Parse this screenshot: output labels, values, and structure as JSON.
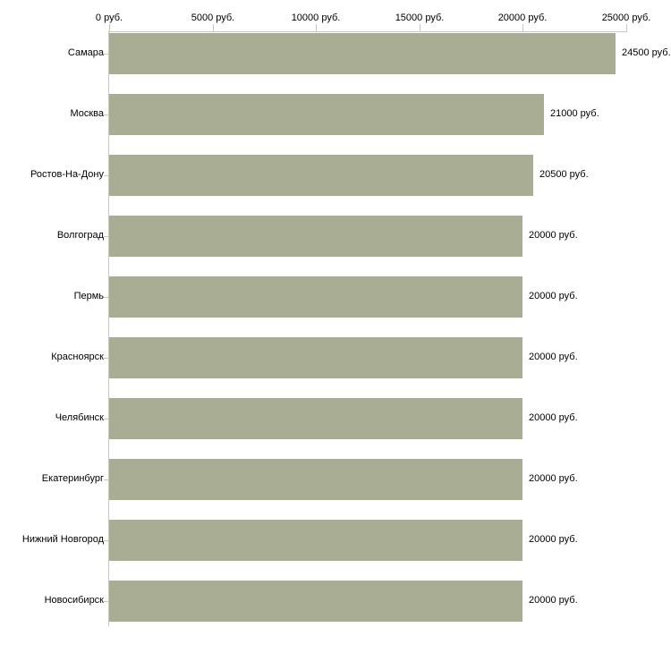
{
  "chart_data": {
    "type": "bar",
    "orientation": "horizontal",
    "title": "",
    "categories": [
      "Самара",
      "Москва",
      "Ростов-На-Дону",
      "Волгоград",
      "Пермь",
      "Красноярск",
      "Челябинск",
      "Екатеринбург",
      "Нижний Новгород",
      "Новосибирск"
    ],
    "values": [
      24500,
      21000,
      20500,
      20000,
      20000,
      20000,
      20000,
      20000,
      20000,
      20000
    ],
    "value_labels": [
      "24500 руб.",
      "21000 руб.",
      "20500 руб.",
      "20000 руб.",
      "20000 руб.",
      "20000 руб.",
      "20000 руб.",
      "20000 руб.",
      "20000 руб.",
      "20000 руб."
    ],
    "x_axis": {
      "position": "top",
      "range": [
        0,
        25000
      ],
      "ticks": [
        0,
        5000,
        10000,
        15000,
        20000,
        25000
      ],
      "tick_labels": [
        "0 руб.",
        "5000 руб.",
        "10000 руб.",
        "15000 руб.",
        "20000 руб.",
        "25000 руб."
      ]
    },
    "grid": false,
    "legend": null,
    "colors": {
      "bar": "#a8ad93",
      "axis": "#c8cab6",
      "text": "#000000",
      "background": "#ffffff"
    }
  }
}
